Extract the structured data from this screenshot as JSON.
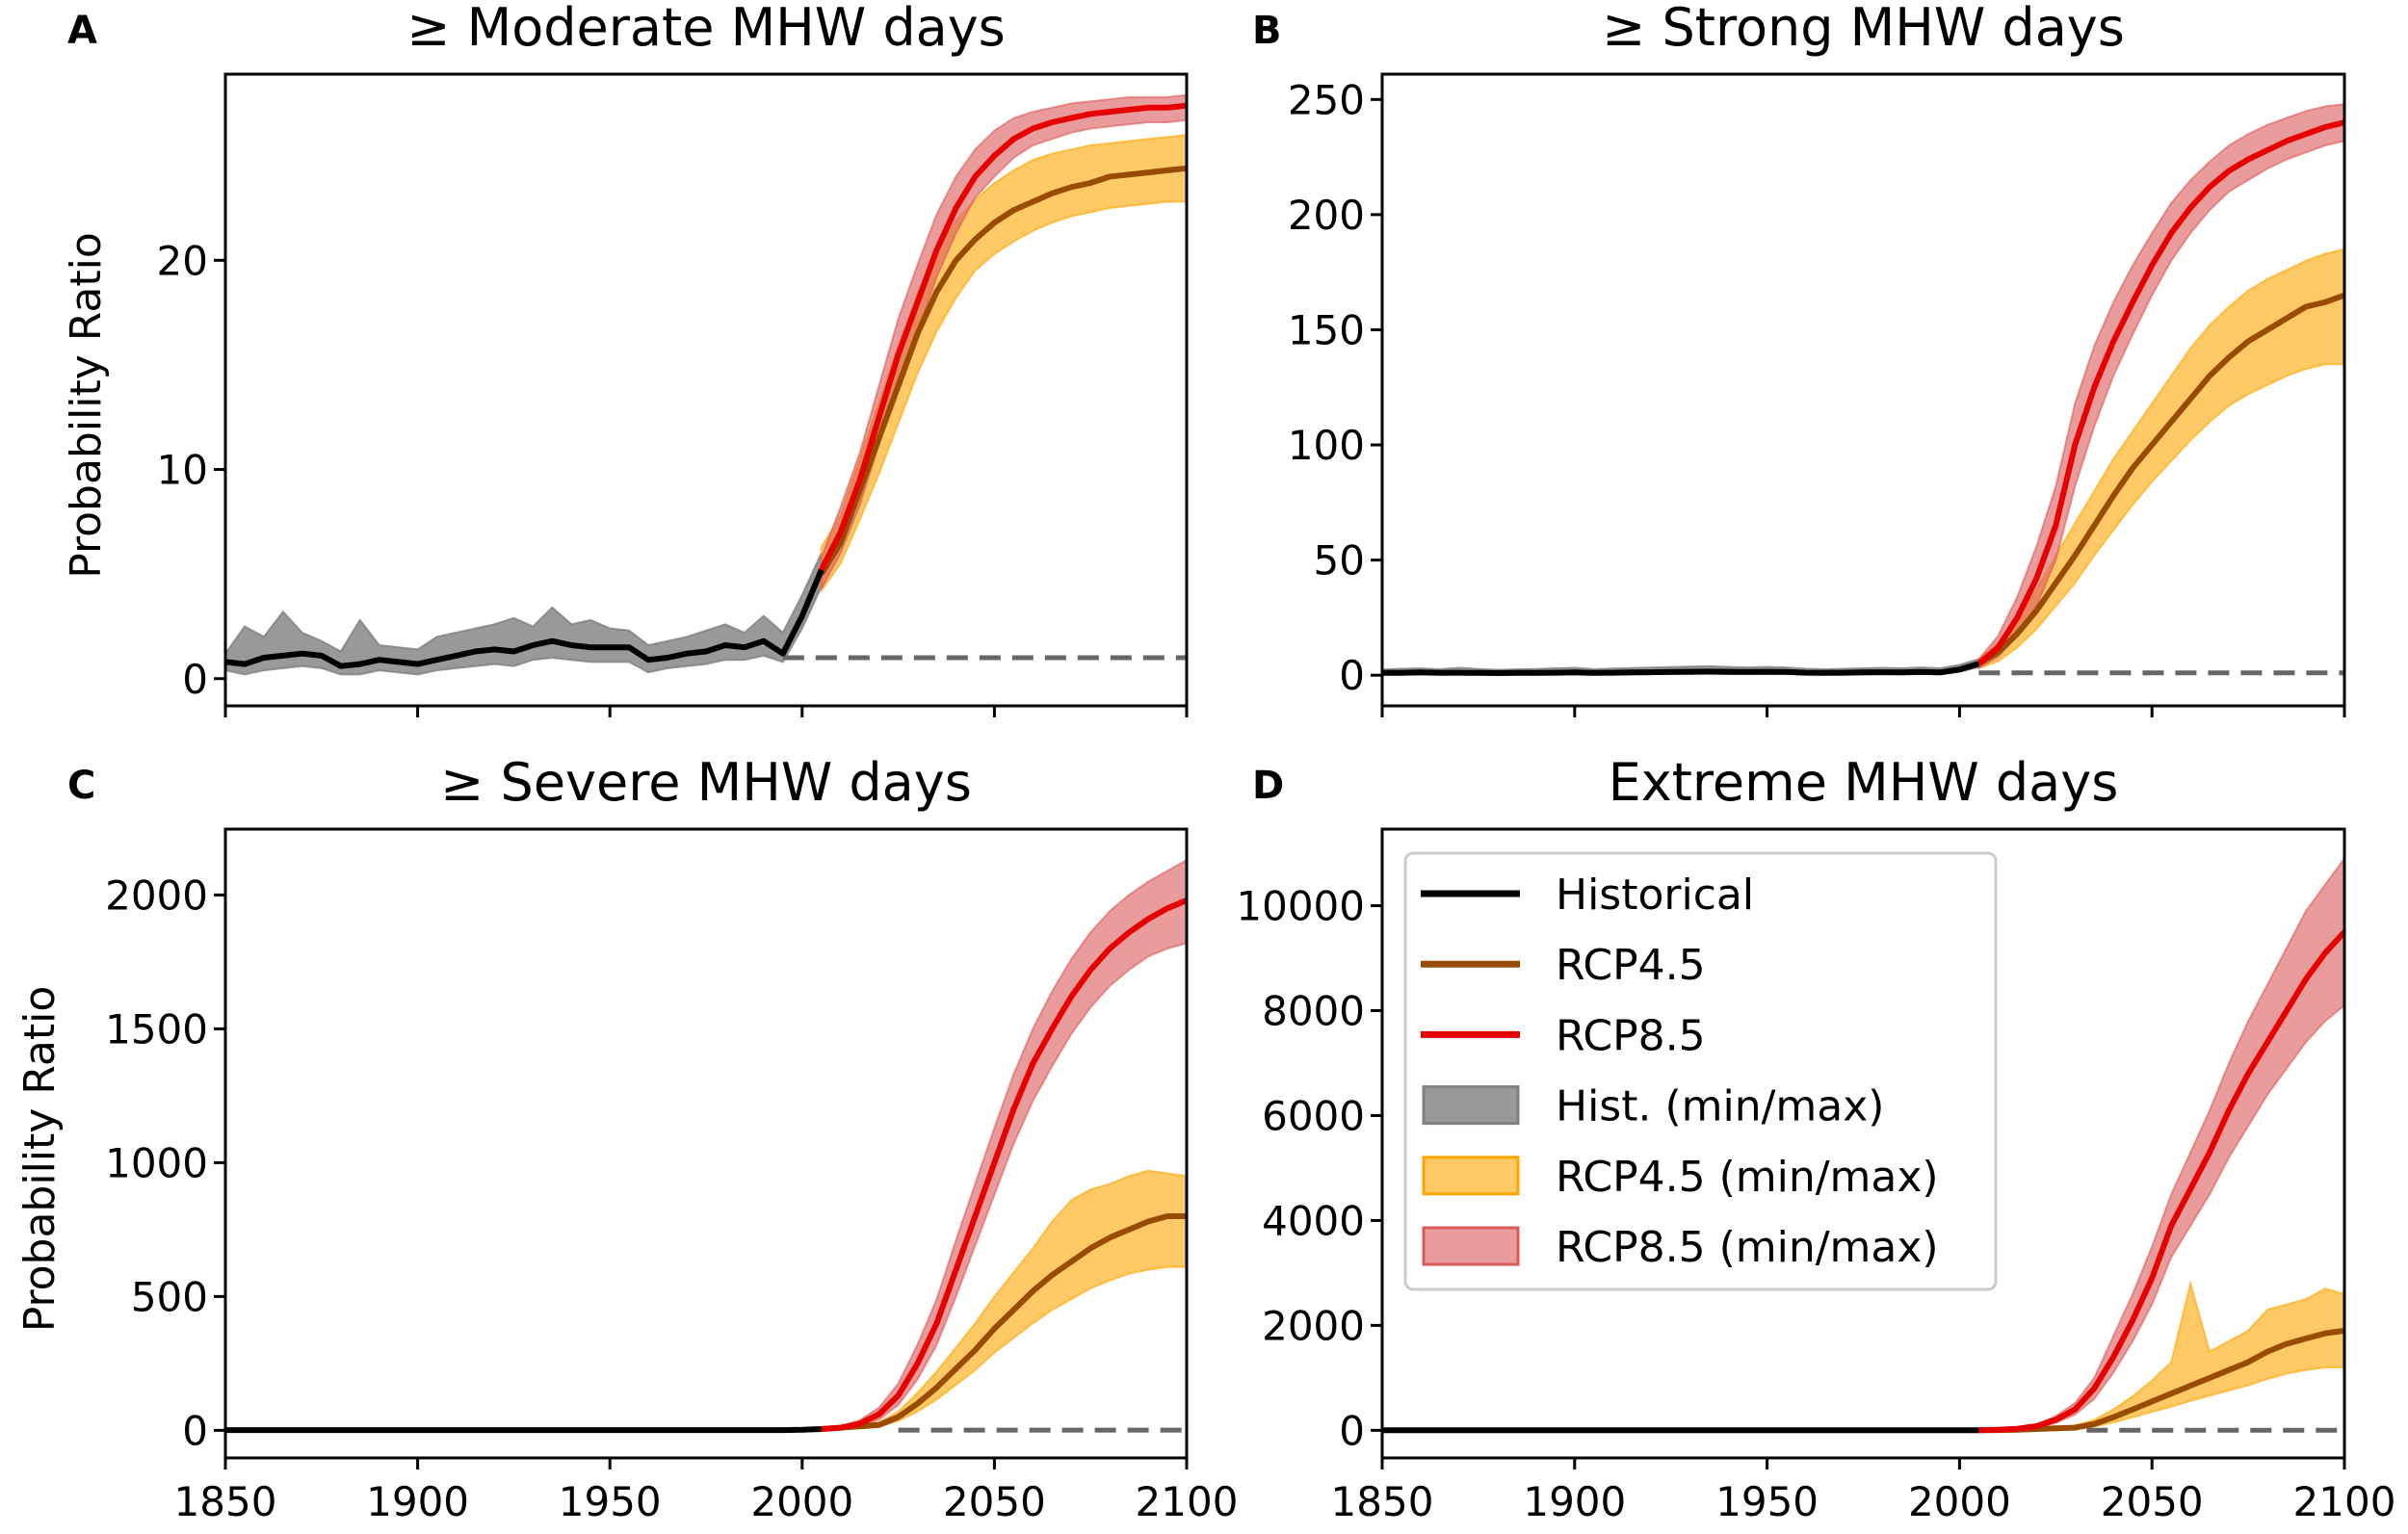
{
  "colors": {
    "historical": "#000000",
    "rcp45": "#994c00",
    "rcp85": "#e60000",
    "hist_band": "#808080",
    "rcp45_band": "#ffa500",
    "rcp85_band": "#dc5a5a",
    "baseline": "#666666"
  },
  "legend": {
    "placement": "upper-left of panel D",
    "items": [
      {
        "label": "Historical",
        "kind": "line",
        "color_key": "historical"
      },
      {
        "label": "RCP4.5",
        "kind": "line",
        "color_key": "rcp45"
      },
      {
        "label": "RCP8.5",
        "kind": "line",
        "color_key": "rcp85"
      },
      {
        "label": "Hist. (min/max)",
        "kind": "patch",
        "color_key": "hist_band"
      },
      {
        "label": "RCP4.5 (min/max)",
        "kind": "patch",
        "color_key": "rcp45_band"
      },
      {
        "label": "RCP8.5 (min/max)",
        "kind": "patch",
        "color_key": "rcp85_band"
      }
    ]
  },
  "chart_data": [
    {
      "type": "line",
      "letter": "A",
      "title": "≥ Moderate MHW days",
      "ylabel": "Probability Ratio",
      "xlabel": "",
      "xlim": [
        1850,
        2100
      ],
      "ylim": [
        -1.3,
        28.9
      ],
      "yticks": [
        0,
        10,
        20
      ],
      "xticks": [
        1850,
        1900,
        1950,
        2000,
        2050,
        2100
      ],
      "show_xticklabels": false,
      "baseline": {
        "value": 1,
        "from": 1995
      },
      "hist_years": {
        "start": 1850,
        "step": 5
      },
      "rcp_years": {
        "start": 2005,
        "step": 5
      },
      "historical": {
        "mean": [
          0.8,
          0.7,
          1.0,
          1.1,
          1.2,
          1.1,
          0.6,
          0.7,
          0.9,
          0.8,
          0.7,
          0.9,
          1.1,
          1.3,
          1.4,
          1.3,
          1.6,
          1.8,
          1.6,
          1.5,
          1.5,
          1.5,
          0.9,
          1.0,
          1.2,
          1.3,
          1.6,
          1.5,
          1.8,
          1.2,
          3.0,
          5.2
        ],
        "min": [
          0.4,
          0.2,
          0.4,
          0.5,
          0.6,
          0.5,
          0.2,
          0.2,
          0.4,
          0.3,
          0.2,
          0.4,
          0.5,
          0.6,
          0.7,
          0.6,
          0.9,
          1.0,
          0.9,
          0.8,
          0.8,
          0.8,
          0.3,
          0.5,
          0.6,
          0.7,
          0.9,
          0.9,
          1.1,
          0.8,
          2.4,
          4.4
        ],
        "max": [
          1.2,
          2.5,
          2.0,
          3.2,
          2.2,
          1.8,
          1.3,
          2.8,
          1.6,
          1.5,
          1.4,
          2.0,
          2.2,
          2.4,
          2.6,
          2.9,
          2.5,
          3.4,
          2.6,
          2.8,
          2.4,
          2.3,
          1.6,
          1.8,
          2.0,
          2.3,
          2.6,
          2.2,
          3.0,
          2.2,
          4.0,
          6.0
        ]
      },
      "rcp45": {
        "mean": [
          5,
          6.5,
          9,
          11.5,
          14,
          16.5,
          18.5,
          20,
          21,
          21.8,
          22.4,
          22.8,
          23.2,
          23.5,
          23.7,
          24,
          24.1,
          24.2,
          24.3,
          24.4
        ],
        "min": [
          4.2,
          5.5,
          7.6,
          9.8,
          12.2,
          14.6,
          16.6,
          18.2,
          19.5,
          20.3,
          20.9,
          21.4,
          21.8,
          22.1,
          22.3,
          22.5,
          22.6,
          22.7,
          22.8,
          22.8
        ],
        "max": [
          6.3,
          7.8,
          10.5,
          13.2,
          15.9,
          18.4,
          20.5,
          21.9,
          22.9,
          23.7,
          24.3,
          24.8,
          25.1,
          25.3,
          25.5,
          25.6,
          25.7,
          25.8,
          25.9,
          26
        ]
      },
      "rcp85": {
        "mean": [
          5.2,
          7,
          9.5,
          12.5,
          15.5,
          18,
          20.5,
          22.5,
          24,
          25,
          25.8,
          26.3,
          26.6,
          26.8,
          27,
          27.1,
          27.2,
          27.3,
          27.3,
          27.4
        ],
        "min": [
          4.3,
          6,
          8.3,
          11.2,
          14,
          16.6,
          19.2,
          21.3,
          23,
          24,
          24.9,
          25.5,
          25.8,
          26.1,
          26.3,
          26.4,
          26.5,
          26.6,
          26.6,
          26.7
        ],
        "max": [
          5.8,
          8.2,
          10.8,
          14,
          17.2,
          19.8,
          22.2,
          24,
          25.3,
          26.2,
          26.8,
          27.1,
          27.3,
          27.5,
          27.6,
          27.7,
          27.8,
          27.8,
          27.8,
          27.9
        ]
      }
    },
    {
      "type": "line",
      "letter": "B",
      "title": "≥ Strong MHW days",
      "ylabel": "",
      "xlabel": "",
      "xlim": [
        1850,
        2100
      ],
      "ylim": [
        -13.3,
        261
      ],
      "yticks": [
        0,
        50,
        100,
        150,
        200,
        250
      ],
      "xticks": [
        1850,
        1900,
        1950,
        2000,
        2050,
        2100
      ],
      "show_xticklabels": false,
      "baseline": {
        "value": 1,
        "from": 2005
      },
      "hist_years": {
        "start": 1850,
        "step": 5
      },
      "rcp_years": {
        "start": 2005,
        "step": 5
      },
      "historical": {
        "mean": [
          1,
          1,
          1.2,
          1,
          1.1,
          1,
          0.9,
          1,
          1,
          1.1,
          1.2,
          1,
          1.1,
          1.2,
          1.3,
          1.4,
          1.5,
          1.6,
          1.5,
          1.4,
          1.5,
          1.4,
          1.1,
          1,
          1.1,
          1.2,
          1.3,
          1.2,
          1.4,
          1.2,
          2.5,
          5
        ],
        "min": [
          0.3,
          0.3,
          0.4,
          0.3,
          0.4,
          0.3,
          0.3,
          0.3,
          0.3,
          0.4,
          0.4,
          0.3,
          0.4,
          0.4,
          0.5,
          0.5,
          0.6,
          0.6,
          0.5,
          0.5,
          0.5,
          0.5,
          0.4,
          0.3,
          0.4,
          0.4,
          0.5,
          0.4,
          0.5,
          0.4,
          1.5,
          3.5
        ],
        "max": [
          2.5,
          2.8,
          3,
          2.6,
          3.2,
          2.7,
          2.4,
          2.6,
          2.7,
          3,
          3.2,
          2.6,
          2.9,
          3.1,
          3.3,
          3.5,
          3.7,
          3.9,
          3.6,
          3.4,
          3.6,
          3.4,
          2.8,
          2.6,
          2.8,
          3,
          3.2,
          3,
          3.4,
          3,
          4.5,
          7
        ]
      },
      "rcp45": {
        "mean": [
          5,
          10,
          18,
          28,
          40,
          52,
          65,
          78,
          90,
          100,
          110,
          120,
          130,
          138,
          145,
          150,
          155,
          160,
          162,
          165
        ],
        "min": [
          3,
          6,
          12,
          20,
          30,
          40,
          52,
          63,
          74,
          84,
          93,
          102,
          110,
          117,
          122,
          126,
          130,
          133,
          135,
          135
        ],
        "max": [
          7,
          14,
          25,
          37,
          52,
          66,
          80,
          94,
          106,
          118,
          130,
          142,
          152,
          160,
          167,
          172,
          176,
          180,
          183,
          185
        ]
      },
      "rcp85": {
        "mean": [
          5,
          12,
          25,
          42,
          65,
          100,
          125,
          145,
          162,
          178,
          192,
          203,
          212,
          219,
          224,
          228,
          232,
          235,
          238,
          240
        ],
        "min": [
          3,
          8,
          17,
          30,
          50,
          82,
          108,
          130,
          148,
          165,
          180,
          192,
          202,
          210,
          215,
          220,
          224,
          227,
          230,
          232
        ],
        "max": [
          7,
          17,
          34,
          56,
          82,
          118,
          143,
          162,
          178,
          192,
          205,
          215,
          223,
          230,
          235,
          239,
          242,
          245,
          247,
          248
        ]
      }
    },
    {
      "type": "line",
      "letter": "C",
      "title": "≥ Severe MHW days",
      "ylabel": "Probability Ratio",
      "xlabel": "",
      "xlim": [
        1850,
        2100
      ],
      "ylim": [
        -103,
        2246
      ],
      "yticks": [
        0,
        500,
        1000,
        1500,
        2000
      ],
      "xticks": [
        1850,
        1900,
        1950,
        2000,
        2050,
        2100
      ],
      "show_xticklabels": true,
      "baseline": {
        "value": 1,
        "from": 2025
      },
      "hist_years": {
        "start": 1850,
        "step": 5
      },
      "rcp_years": {
        "start": 2005,
        "step": 5
      },
      "historical": {
        "mean": [
          1,
          1,
          1,
          1,
          1,
          1,
          1,
          1,
          1,
          1,
          1,
          1,
          1,
          1,
          1,
          1,
          1,
          1,
          1,
          1,
          1,
          1,
          1,
          1,
          1,
          1,
          1,
          1,
          1,
          1,
          2,
          5
        ],
        "min": [
          0,
          0,
          0,
          0,
          0,
          0,
          0,
          0,
          0,
          0,
          0,
          0,
          0,
          0,
          0,
          0,
          0,
          0,
          0,
          0,
          0,
          0,
          0,
          0,
          0,
          0,
          0,
          0,
          0,
          0,
          1,
          3
        ],
        "max": [
          3,
          3,
          3,
          3,
          3,
          3,
          3,
          3,
          3,
          3,
          3,
          3,
          3,
          3,
          3,
          3,
          3,
          3,
          3,
          3,
          3,
          3,
          3,
          3,
          3,
          3,
          3,
          3,
          3,
          3,
          4,
          8
        ]
      },
      "rcp45": {
        "mean": [
          5,
          10,
          15,
          20,
          50,
          100,
          160,
          230,
          300,
          380,
          450,
          520,
          580,
          630,
          680,
          720,
          750,
          780,
          800,
          800
        ],
        "min": [
          3,
          6,
          10,
          14,
          35,
          70,
          115,
          170,
          225,
          290,
          345,
          400,
          450,
          490,
          530,
          560,
          585,
          600,
          610,
          610
        ],
        "max": [
          8,
          15,
          22,
          30,
          70,
          140,
          220,
          310,
          400,
          500,
          590,
          680,
          780,
          860,
          900,
          920,
          950,
          970,
          960,
          950
        ]
      },
      "rcp85": {
        "mean": [
          5,
          10,
          25,
          60,
          130,
          250,
          400,
          600,
          800,
          1000,
          1200,
          1370,
          1500,
          1620,
          1720,
          1800,
          1860,
          1910,
          1950,
          1980
        ],
        "min": [
          3,
          6,
          15,
          40,
          95,
          190,
          320,
          500,
          690,
          880,
          1070,
          1230,
          1360,
          1480,
          1580,
          1660,
          1720,
          1770,
          1800,
          1820
        ],
        "max": [
          8,
          15,
          38,
          85,
          175,
          320,
          490,
          710,
          920,
          1130,
          1330,
          1500,
          1640,
          1760,
          1860,
          1940,
          2000,
          2050,
          2090,
          2130
        ]
      }
    },
    {
      "type": "line",
      "letter": "D",
      "title": "Extreme MHW days",
      "ylabel": "",
      "xlabel": "",
      "xlim": [
        1850,
        2100
      ],
      "ylim": [
        -526,
        11460
      ],
      "yticks": [
        0,
        2000,
        4000,
        6000,
        8000,
        10000
      ],
      "xticks": [
        1850,
        1900,
        1950,
        2000,
        2050,
        2100
      ],
      "show_xticklabels": true,
      "baseline": {
        "value": 1,
        "from": 2033
      },
      "hist_years": {
        "start": 1850,
        "step": 5
      },
      "rcp_years": {
        "start": 2005,
        "step": 5
      },
      "historical": {
        "mean": [
          1,
          1,
          1,
          1,
          1,
          1,
          1,
          1,
          1,
          1,
          1,
          1,
          1,
          1,
          1,
          1,
          1,
          1,
          1,
          1,
          1,
          1,
          1,
          1,
          1,
          1,
          1,
          1,
          1,
          1,
          1,
          1
        ],
        "min": [
          0,
          0,
          0,
          0,
          0,
          0,
          0,
          0,
          0,
          0,
          0,
          0,
          0,
          0,
          0,
          0,
          0,
          0,
          0,
          0,
          0,
          0,
          0,
          0,
          0,
          0,
          0,
          0,
          0,
          0,
          0,
          0
        ],
        "max": [
          3,
          3,
          3,
          3,
          3,
          3,
          3,
          3,
          3,
          3,
          3,
          3,
          3,
          3,
          3,
          3,
          3,
          3,
          3,
          3,
          3,
          3,
          3,
          3,
          3,
          3,
          3,
          3,
          3,
          3,
          3,
          3
        ]
      },
      "rcp45": {
        "mean": [
          0,
          5,
          12,
          25,
          40,
          50,
          120,
          250,
          400,
          550,
          700,
          850,
          1000,
          1150,
          1300,
          1500,
          1650,
          1750,
          1850,
          1900
        ],
        "min": [
          0,
          2,
          6,
          14,
          25,
          30,
          70,
          150,
          250,
          350,
          450,
          560,
          660,
          760,
          860,
          980,
          1080,
          1150,
          1200,
          1200
        ],
        "max": [
          0,
          8,
          20,
          40,
          65,
          90,
          200,
          400,
          650,
          950,
          1300,
          2800,
          1500,
          1700,
          1900,
          2300,
          2400,
          2500,
          2700,
          2600
        ]
      },
      "rcp85": {
        "mean": [
          0,
          10,
          30,
          80,
          200,
          400,
          800,
          1400,
          2100,
          2900,
          3900,
          4600,
          5300,
          6100,
          6800,
          7400,
          8000,
          8600,
          9100,
          9500
        ],
        "min": [
          0,
          5,
          18,
          55,
          140,
          300,
          600,
          1100,
          1700,
          2400,
          3300,
          3900,
          4500,
          5200,
          5800,
          6400,
          6900,
          7400,
          7800,
          8100
        ],
        "max": [
          0,
          15,
          45,
          110,
          270,
          520,
          1000,
          1800,
          2600,
          3500,
          4500,
          5300,
          6100,
          7000,
          7800,
          8500,
          9200,
          9900,
          10400,
          10900
        ]
      }
    }
  ]
}
